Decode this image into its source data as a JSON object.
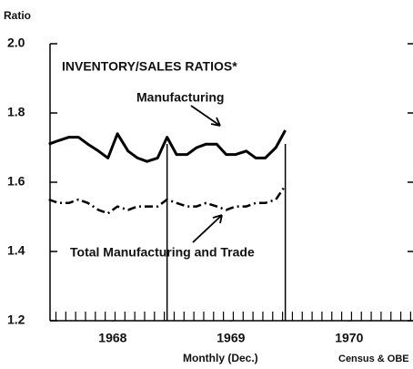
{
  "chart_data": {
    "type": "line",
    "title": "INVENTORY/SALES RATIOS*",
    "y_label": "Ratio",
    "x_label": "Monthly (Dec.)",
    "source": "Census & OBE",
    "x": [
      1967.96,
      1968.04,
      1968.13,
      1968.21,
      1968.29,
      1968.38,
      1968.46,
      1968.54,
      1968.63,
      1968.71,
      1968.79,
      1968.88,
      1968.96,
      1969.04,
      1969.13,
      1969.21,
      1969.29,
      1969.38,
      1969.46,
      1969.54,
      1969.63,
      1969.71,
      1969.79,
      1969.88,
      1969.96
    ],
    "series": [
      {
        "name": "Manufacturing",
        "color": "#000000",
        "dash": "solid",
        "values": [
          1.71,
          1.72,
          1.73,
          1.73,
          1.71,
          1.69,
          1.67,
          1.74,
          1.69,
          1.67,
          1.66,
          1.67,
          1.73,
          1.68,
          1.68,
          1.7,
          1.71,
          1.71,
          1.68,
          1.68,
          1.69,
          1.67,
          1.67,
          1.7,
          1.75
        ]
      },
      {
        "name": "Total Manufacturing and Trade",
        "color": "#000000",
        "dash": "dashdot",
        "values": [
          1.55,
          1.54,
          1.54,
          1.55,
          1.54,
          1.52,
          1.51,
          1.53,
          1.52,
          1.53,
          1.53,
          1.53,
          1.55,
          1.54,
          1.53,
          1.53,
          1.54,
          1.53,
          1.52,
          1.53,
          1.53,
          1.54,
          1.54,
          1.55,
          1.59
        ]
      }
    ],
    "xlim": [
      1967.97,
      1971.04
    ],
    "xticks": [
      {
        "value": 1968.5,
        "label": "1968"
      },
      {
        "value": 1969.5,
        "label": "1969"
      },
      {
        "value": 1970.5,
        "label": "1970"
      }
    ],
    "ylim": [
      1.2,
      2.0
    ],
    "yticks": [
      {
        "value": 1.2,
        "label": "1.2"
      },
      {
        "value": 1.4,
        "label": "1.4"
      },
      {
        "value": 1.6,
        "label": "1.6"
      },
      {
        "value": 1.8,
        "label": "1.8"
      },
      {
        "value": 2,
        "label": "2.0"
      }
    ],
    "vlines": [
      1968.96,
      1969.96
    ]
  }
}
